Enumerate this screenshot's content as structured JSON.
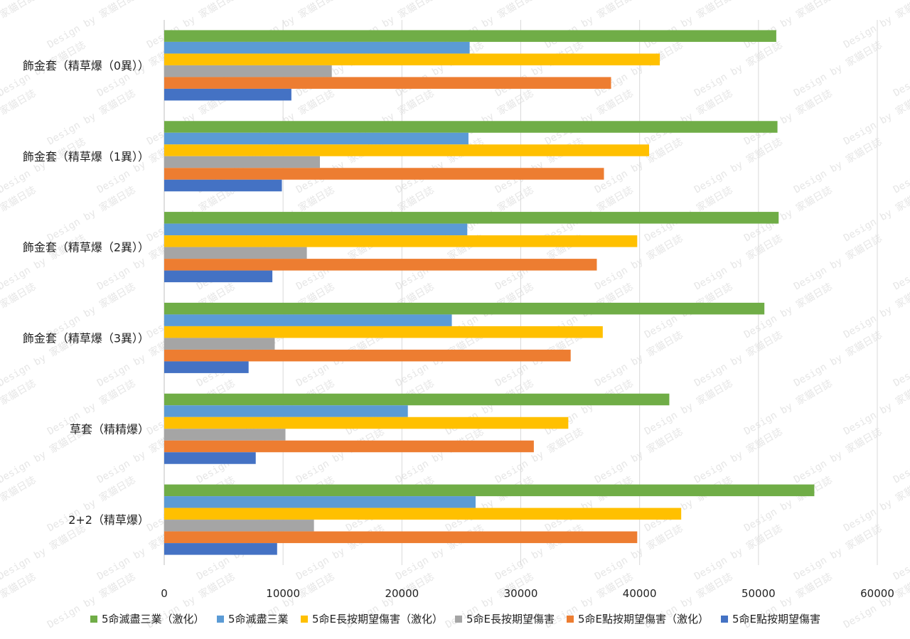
{
  "chart_data": {
    "type": "bar",
    "orientation": "horizontal",
    "categories": [
      "飾金套（精草爆（0異））",
      "飾金套（精草爆（1異））",
      "飾金套（精草爆（2異））",
      "飾金套（精草爆（3異））",
      "草套（精精爆）",
      "2+2（精草爆）"
    ],
    "series": [
      {
        "name": "5命滅盡三業（激化）",
        "color": "#70AD47",
        "values": [
          51500,
          51600,
          51700,
          50500,
          42500,
          54700
        ]
      },
      {
        "name": "5命滅盡三業",
        "color": "#5B9BD5",
        "values": [
          25700,
          25600,
          25500,
          24200,
          20500,
          26200
        ]
      },
      {
        "name": "5命E長按期望傷害（激化）",
        "color": "#FFC000",
        "values": [
          41700,
          40800,
          39800,
          36900,
          34000,
          43500
        ]
      },
      {
        "name": "5命E長按期望傷害",
        "color": "#A5A5A5",
        "values": [
          14100,
          13100,
          12000,
          9300,
          10200,
          12600
        ]
      },
      {
        "name": "5命E點按期望傷害（激化）",
        "color": "#ED7D31",
        "values": [
          37600,
          37000,
          36400,
          34200,
          31100,
          39800
        ]
      },
      {
        "name": "5命E點按期望傷害",
        "color": "#4472C4",
        "values": [
          10700,
          9900,
          9100,
          7100,
          7700,
          9500
        ]
      }
    ],
    "xlim": [
      0,
      60000
    ],
    "xticks": [
      "0",
      "10000",
      "20000",
      "30000",
      "40000",
      "50000",
      "60000"
    ],
    "grid": true,
    "legend": "bottom",
    "title": "",
    "xlabel": "",
    "ylabel": "",
    "watermark": "Design by 家貓日誌"
  }
}
